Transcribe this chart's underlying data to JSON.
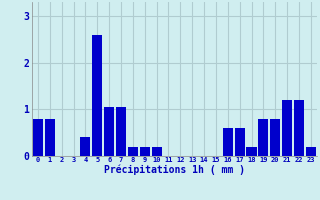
{
  "hours": [
    0,
    1,
    2,
    3,
    4,
    5,
    6,
    7,
    8,
    9,
    10,
    11,
    12,
    13,
    14,
    15,
    16,
    17,
    18,
    19,
    20,
    21,
    22,
    23
  ],
  "values": [
    0.8,
    0.8,
    0.0,
    0.0,
    0.4,
    2.6,
    1.05,
    1.05,
    0.2,
    0.2,
    0.2,
    0.0,
    0.0,
    0.0,
    0.0,
    0.0,
    0.6,
    0.6,
    0.2,
    0.8,
    0.8,
    1.2,
    1.2,
    0.2
  ],
  "bar_color": "#0000cc",
  "background_color": "#d0eef0",
  "grid_color": "#b0ccd0",
  "xlabel": "Précipitations 1h ( mm )",
  "xlabel_color": "#0000bb",
  "tick_color": "#0000bb",
  "ylim": [
    0,
    3.3
  ],
  "yticks": [
    0,
    1,
    2,
    3
  ]
}
